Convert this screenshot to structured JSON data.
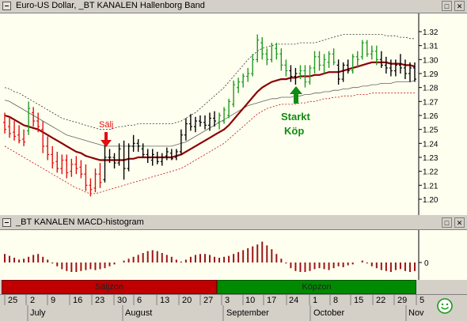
{
  "price_pane": {
    "title": "Euro-US Dollar, _BT KANALEN Hallenborg Band",
    "sell_label": "Sälj",
    "buy_label_line1": "Starkt",
    "buy_label_line2": "Köp",
    "yticks": [
      "1.32",
      "1.31",
      "1.30",
      "1.29",
      "1.28",
      "1.27",
      "1.26",
      "1.25",
      "1.24",
      "1.23",
      "1.22",
      "1.21",
      "1.20"
    ]
  },
  "macd_pane": {
    "title": "_BT KANALEN MACD-histogram",
    "zero_label": "0"
  },
  "zones": {
    "sell": "Säljzon",
    "buy": "Köpzon"
  },
  "date_axis": {
    "days": [
      "25",
      "2",
      "9",
      "16",
      "23",
      "30",
      "6",
      "13",
      "20",
      "27",
      "3",
      "10",
      "17",
      "24",
      "1",
      "8",
      "15",
      "22",
      "29",
      "5"
    ],
    "months": [
      "July",
      "August",
      "September",
      "October",
      "Nov"
    ]
  },
  "colors": {
    "up": "#1f9a1f",
    "down": "#e01010",
    "neutral": "#000000",
    "ma": "#8b0000",
    "band": "#555555",
    "macd": "#9b1515",
    "sell_zone": "#c00000",
    "buy_zone": "#008a00"
  },
  "chart_data": {
    "type": "bar",
    "title": "Euro-US Dollar, _BT KANALEN Hallenborg Band",
    "ylim": [
      1.195,
      1.325
    ],
    "ohlc": [
      [
        1.255,
        1.262,
        1.247,
        1.25
      ],
      [
        1.252,
        1.259,
        1.244,
        1.247
      ],
      [
        1.248,
        1.256,
        1.242,
        1.245
      ],
      [
        1.246,
        1.253,
        1.24,
        1.242
      ],
      [
        1.243,
        1.25,
        1.238,
        1.241
      ],
      [
        1.249,
        1.27,
        1.246,
        1.265
      ],
      [
        1.262,
        1.266,
        1.252,
        1.256
      ],
      [
        1.256,
        1.262,
        1.248,
        1.252
      ],
      [
        1.25,
        1.256,
        1.233,
        1.238
      ],
      [
        1.238,
        1.245,
        1.228,
        1.232
      ],
      [
        1.232,
        1.238,
        1.222,
        1.226
      ],
      [
        1.227,
        1.234,
        1.219,
        1.222
      ],
      [
        1.222,
        1.232,
        1.218,
        1.228
      ],
      [
        1.228,
        1.232,
        1.215,
        1.219
      ],
      [
        1.22,
        1.229,
        1.216,
        1.225
      ],
      [
        1.225,
        1.231,
        1.218,
        1.222
      ],
      [
        1.223,
        1.228,
        1.215,
        1.218
      ],
      [
        1.218,
        1.225,
        1.206,
        1.21
      ],
      [
        1.21,
        1.215,
        1.202,
        1.207
      ],
      [
        1.208,
        1.222,
        1.205,
        1.218
      ],
      [
        1.218,
        1.226,
        1.208,
        1.212
      ],
      [
        1.214,
        1.24,
        1.212,
        1.23
      ],
      [
        1.23,
        1.236,
        1.226,
        1.23
      ],
      [
        1.23,
        1.233,
        1.222,
        1.226
      ],
      [
        1.226,
        1.24,
        1.224,
        1.236
      ],
      [
        1.228,
        1.242,
        1.214,
        1.222
      ],
      [
        1.222,
        1.24,
        1.22,
        1.238
      ],
      [
        1.238,
        1.246,
        1.234,
        1.24
      ],
      [
        1.24,
        1.243,
        1.234,
        1.238
      ],
      [
        1.236,
        1.24,
        1.23,
        1.232
      ],
      [
        1.232,
        1.236,
        1.226,
        1.23
      ],
      [
        1.228,
        1.236,
        1.224,
        1.232
      ],
      [
        1.23,
        1.234,
        1.225,
        1.227
      ],
      [
        1.227,
        1.233,
        1.224,
        1.23
      ],
      [
        1.231,
        1.237,
        1.228,
        1.234
      ],
      [
        1.233,
        1.236,
        1.228,
        1.229
      ],
      [
        1.23,
        1.236,
        1.228,
        1.234
      ],
      [
        1.234,
        1.25,
        1.232,
        1.246
      ],
      [
        1.246,
        1.258,
        1.242,
        1.254
      ],
      [
        1.254,
        1.261,
        1.249,
        1.252
      ],
      [
        1.252,
        1.259,
        1.248,
        1.256
      ],
      [
        1.256,
        1.26,
        1.252,
        1.255
      ],
      [
        1.255,
        1.26,
        1.25,
        1.253
      ],
      [
        1.253,
        1.262,
        1.249,
        1.258
      ],
      [
        1.258,
        1.263,
        1.252,
        1.256
      ],
      [
        1.255,
        1.262,
        1.25,
        1.26
      ],
      [
        1.256,
        1.266,
        1.254,
        1.264
      ],
      [
        1.26,
        1.272,
        1.258,
        1.27
      ],
      [
        1.268,
        1.285,
        1.266,
        1.282
      ],
      [
        1.28,
        1.287,
        1.276,
        1.284
      ],
      [
        1.284,
        1.29,
        1.28,
        1.288
      ],
      [
        1.288,
        1.294,
        1.284,
        1.29
      ],
      [
        1.29,
        1.304,
        1.288,
        1.3
      ],
      [
        1.3,
        1.318,
        1.298,
        1.314
      ],
      [
        1.312,
        1.316,
        1.3,
        1.304
      ],
      [
        1.304,
        1.308,
        1.296,
        1.3
      ],
      [
        1.3,
        1.312,
        1.298,
        1.31
      ],
      [
        1.308,
        1.312,
        1.3,
        1.304
      ],
      [
        1.304,
        1.308,
        1.292,
        1.296
      ],
      [
        1.296,
        1.3,
        1.288,
        1.292
      ],
      [
        1.292,
        1.296,
        1.284,
        1.288
      ],
      [
        1.288,
        1.294,
        1.282,
        1.29
      ],
      [
        1.29,
        1.296,
        1.286,
        1.292
      ],
      [
        1.292,
        1.296,
        1.28,
        1.284
      ],
      [
        1.284,
        1.296,
        1.282,
        1.294
      ],
      [
        1.294,
        1.306,
        1.29,
        1.302
      ],
      [
        1.302,
        1.306,
        1.292,
        1.296
      ],
      [
        1.296,
        1.304,
        1.29,
        1.3
      ],
      [
        1.298,
        1.306,
        1.294,
        1.304
      ],
      [
        1.304,
        1.308,
        1.296,
        1.298
      ],
      [
        1.296,
        1.3,
        1.282,
        1.286
      ],
      [
        1.286,
        1.298,
        1.284,
        1.296
      ],
      [
        1.296,
        1.3,
        1.29,
        1.292
      ],
      [
        1.292,
        1.304,
        1.29,
        1.302
      ],
      [
        1.302,
        1.306,
        1.294,
        1.3
      ],
      [
        1.302,
        1.314,
        1.3,
        1.312
      ],
      [
        1.312,
        1.314,
        1.302,
        1.304
      ],
      [
        1.304,
        1.31,
        1.3,
        1.306
      ],
      [
        1.306,
        1.31,
        1.296,
        1.3
      ],
      [
        1.3,
        1.306,
        1.294,
        1.296
      ],
      [
        1.296,
        1.302,
        1.29,
        1.294
      ],
      [
        1.294,
        1.3,
        1.288,
        1.292
      ],
      [
        1.292,
        1.3,
        1.288,
        1.296
      ],
      [
        1.296,
        1.304,
        1.29,
        1.294
      ],
      [
        1.294,
        1.3,
        1.286,
        1.29
      ],
      [
        1.29,
        1.298,
        1.284,
        1.294
      ],
      [
        1.294,
        1.298,
        1.284,
        1.286
      ]
    ],
    "colors": [
      "down",
      "down",
      "down",
      "down",
      "down",
      "up",
      "down",
      "down",
      "down",
      "down",
      "down",
      "down",
      "down",
      "down",
      "down",
      "down",
      "down",
      "down",
      "down",
      "down",
      "down",
      "black",
      "black",
      "black",
      "black",
      "black",
      "black",
      "black",
      "black",
      "black",
      "black",
      "black",
      "black",
      "black",
      "black",
      "black",
      "black",
      "black",
      "black",
      "black",
      "black",
      "black",
      "black",
      "black",
      "black",
      "up",
      "up",
      "up",
      "up",
      "up",
      "up",
      "up",
      "up",
      "up",
      "up",
      "up",
      "up",
      "up",
      "up",
      "up",
      "black",
      "black",
      "up",
      "up",
      "up",
      "up",
      "up",
      "up",
      "up",
      "up",
      "black",
      "black",
      "black",
      "up",
      "up",
      "up",
      "up",
      "up",
      "up",
      "black",
      "black",
      "black",
      "black",
      "black",
      "black",
      "black",
      "black"
    ],
    "ma": [
      1.26,
      1.259,
      1.257,
      1.255,
      1.253,
      1.252,
      1.251,
      1.25,
      1.248,
      1.246,
      1.244,
      1.242,
      1.24,
      1.238,
      1.236,
      1.234,
      1.233,
      1.231,
      1.23,
      1.229,
      1.228,
      1.228,
      1.228,
      1.228,
      1.228,
      1.228,
      1.229,
      1.229,
      1.23,
      1.23,
      1.23,
      1.23,
      1.23,
      1.23,
      1.23,
      1.23,
      1.231,
      1.232,
      1.234,
      1.236,
      1.238,
      1.24,
      1.242,
      1.244,
      1.246,
      1.248,
      1.25,
      1.253,
      1.257,
      1.261,
      1.265,
      1.269,
      1.273,
      1.277,
      1.28,
      1.282,
      1.284,
      1.285,
      1.286,
      1.286,
      1.287,
      1.287,
      1.288,
      1.288,
      1.288,
      1.289,
      1.289,
      1.29,
      1.291,
      1.291,
      1.291,
      1.292,
      1.293,
      1.294,
      1.295,
      1.296,
      1.297,
      1.298,
      1.298,
      1.298,
      1.298,
      1.297,
      1.297,
      1.297,
      1.296,
      1.296,
      1.295
    ],
    "upper_band": [
      1.28,
      1.279,
      1.277,
      1.276,
      1.274,
      1.272,
      1.27,
      1.268,
      1.266,
      1.264,
      1.262,
      1.26,
      1.258,
      1.257,
      1.256,
      1.255,
      1.254,
      1.253,
      1.252,
      1.251,
      1.25,
      1.25,
      1.25,
      1.251,
      1.252,
      1.252,
      1.253,
      1.253,
      1.254,
      1.254,
      1.254,
      1.254,
      1.254,
      1.254,
      1.254,
      1.254,
      1.255,
      1.256,
      1.258,
      1.26,
      1.262,
      1.265,
      1.268,
      1.271,
      1.274,
      1.277,
      1.28,
      1.284,
      1.288,
      1.292,
      1.296,
      1.3,
      1.303,
      1.306,
      1.308,
      1.309,
      1.31,
      1.311,
      1.311,
      1.311,
      1.311,
      1.311,
      1.312,
      1.312,
      1.312,
      1.312,
      1.313,
      1.314,
      1.315,
      1.316,
      1.317,
      1.318,
      1.318,
      1.318,
      1.318,
      1.318,
      1.318,
      1.318,
      1.318,
      1.318,
      1.317,
      1.317,
      1.317,
      1.316,
      1.316,
      1.315,
      1.315
    ],
    "lower_band": [
      1.238,
      1.236,
      1.234,
      1.232,
      1.23,
      1.228,
      1.226,
      1.224,
      1.222,
      1.22,
      1.218,
      1.216,
      1.214,
      1.212,
      1.21,
      1.208,
      1.207,
      1.205,
      1.204,
      1.204,
      1.205,
      1.206,
      1.207,
      1.208,
      1.209,
      1.21,
      1.211,
      1.212,
      1.213,
      1.214,
      1.215,
      1.216,
      1.217,
      1.218,
      1.219,
      1.22,
      1.221,
      1.222,
      1.224,
      1.226,
      1.228,
      1.23,
      1.232,
      1.234,
      1.236,
      1.238,
      1.24,
      1.243,
      1.246,
      1.249,
      1.252,
      1.255,
      1.258,
      1.261,
      1.263,
      1.265,
      1.266,
      1.267,
      1.268,
      1.268,
      1.268,
      1.268,
      1.269,
      1.269,
      1.27,
      1.27,
      1.271,
      1.272,
      1.272,
      1.273,
      1.273,
      1.274,
      1.274,
      1.274,
      1.275,
      1.275,
      1.275,
      1.276,
      1.276,
      1.276,
      1.276,
      1.276,
      1.276,
      1.276,
      1.276,
      1.276,
      1.276
    ],
    "mid_line": [
      1.271,
      1.27,
      1.268,
      1.266,
      1.264,
      1.262,
      1.26,
      1.258,
      1.256,
      1.254,
      1.252,
      1.25,
      1.248,
      1.246,
      1.245,
      1.244,
      1.243,
      1.242,
      1.241,
      1.24,
      1.239,
      1.238,
      1.238,
      1.238,
      1.238,
      1.238,
      1.238,
      1.238,
      1.238,
      1.238,
      1.238,
      1.238,
      1.238,
      1.238,
      1.238,
      1.238,
      1.239,
      1.24,
      1.241,
      1.243,
      1.245,
      1.247,
      1.249,
      1.251,
      1.253,
      1.255,
      1.257,
      1.259,
      1.261,
      1.263,
      1.265,
      1.267,
      1.268,
      1.269,
      1.27,
      1.271,
      1.272,
      1.272,
      1.273,
      1.273,
      1.273,
      1.274,
      1.274,
      1.275,
      1.275,
      1.276,
      1.276,
      1.277,
      1.277,
      1.278,
      1.278,
      1.279,
      1.279,
      1.28,
      1.28,
      1.281,
      1.281,
      1.282,
      1.282,
      1.283,
      1.283,
      1.283,
      1.284,
      1.284,
      1.284,
      1.284,
      1.285
    ],
    "macd_histogram": [
      0.9,
      0.7,
      0.5,
      0.3,
      0.4,
      0.6,
      0.8,
      0.9,
      0.6,
      0.3,
      -0.1,
      -0.4,
      -0.7,
      -0.9,
      -1.0,
      -1.0,
      -0.9,
      -0.8,
      -0.7,
      -0.8,
      -0.7,
      -0.6,
      -0.4,
      -0.2,
      0.0,
      0.2,
      0.4,
      0.6,
      0.8,
      1.0,
      1.2,
      1.3,
      1.2,
      1.0,
      0.8,
      0.6,
      0.3,
      0.1,
      0.3,
      0.6,
      0.8,
      0.9,
      0.9,
      0.8,
      0.6,
      0.5,
      0.6,
      0.7,
      0.9,
      1.1,
      1.3,
      1.5,
      1.7,
      1.9,
      2.2,
      1.8,
      1.4,
      0.9,
      0.4,
      -0.1,
      -0.6,
      -0.9,
      -1.0,
      -1.0,
      -0.9,
      -0.7,
      -0.6,
      -0.7,
      -0.8,
      -0.6,
      -0.4,
      -0.5,
      -0.3,
      -0.2,
      0.0,
      0.2,
      -0.1,
      -0.4,
      -0.6,
      -0.8,
      -0.9,
      -1.0,
      -0.8,
      -0.7,
      -0.9,
      -1.0,
      -0.9
    ]
  }
}
